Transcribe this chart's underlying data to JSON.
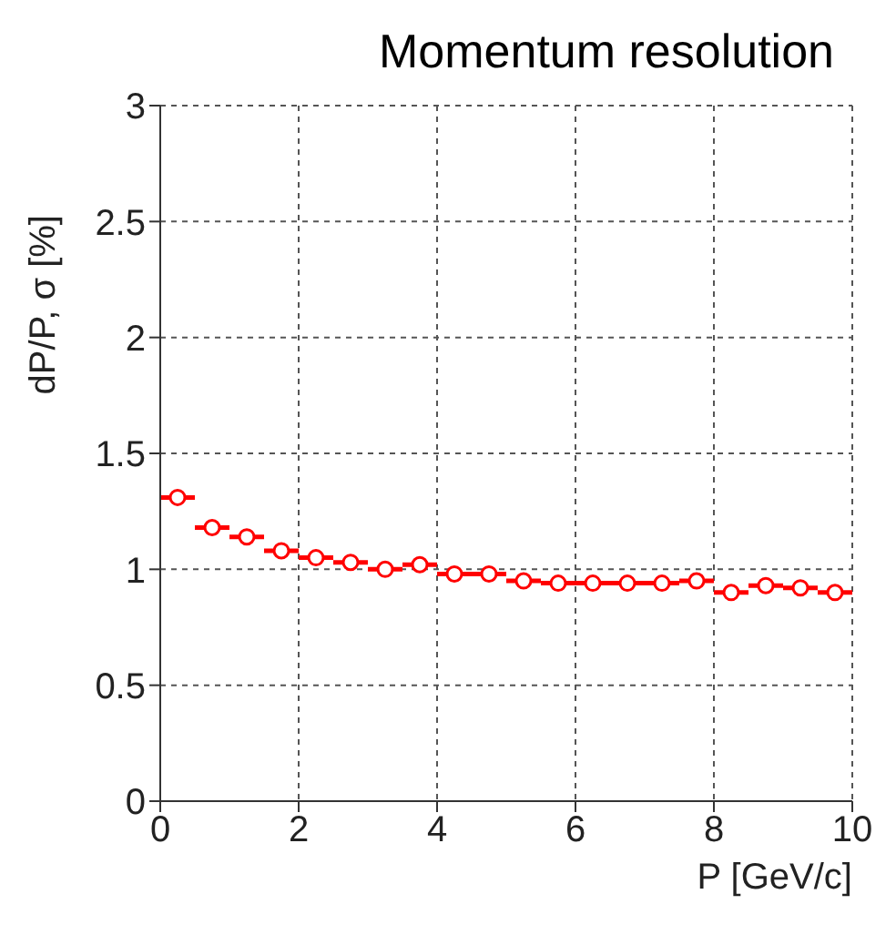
{
  "chart_data": {
    "type": "scatter",
    "title": "Momentum resolution",
    "xlabel": "P [GeV/c]",
    "ylabel": "dP/P, σ [%]",
    "x": [
      0.25,
      0.75,
      1.25,
      1.75,
      2.25,
      2.75,
      3.25,
      3.75,
      4.25,
      4.75,
      5.25,
      5.75,
      6.25,
      6.75,
      7.25,
      7.75,
      8.25,
      8.75,
      9.25,
      9.75
    ],
    "series": [
      {
        "color": "#ff0000",
        "values": [
          1.31,
          1.18,
          1.14,
          1.08,
          1.05,
          1.03,
          1.0,
          1.02,
          0.98,
          0.98,
          0.95,
          0.94,
          0.94,
          0.94,
          0.94,
          0.95,
          0.9,
          0.93,
          0.92,
          0.9
        ],
        "xerrors": [
          0.25,
          0.25,
          0.25,
          0.25,
          0.25,
          0.25,
          0.25,
          0.25,
          0.25,
          0.25,
          0.25,
          0.25,
          0.25,
          0.25,
          0.25,
          0.25,
          0.25,
          0.25,
          0.25,
          0.25
        ]
      }
    ],
    "xlim": [
      0,
      10
    ],
    "ylim": [
      0,
      3
    ],
    "xticks": [
      0,
      2,
      4,
      6,
      8,
      10
    ],
    "yticks": [
      0,
      0.5,
      1,
      1.5,
      2,
      2.5,
      3
    ],
    "grid": true,
    "marker": "circle"
  }
}
